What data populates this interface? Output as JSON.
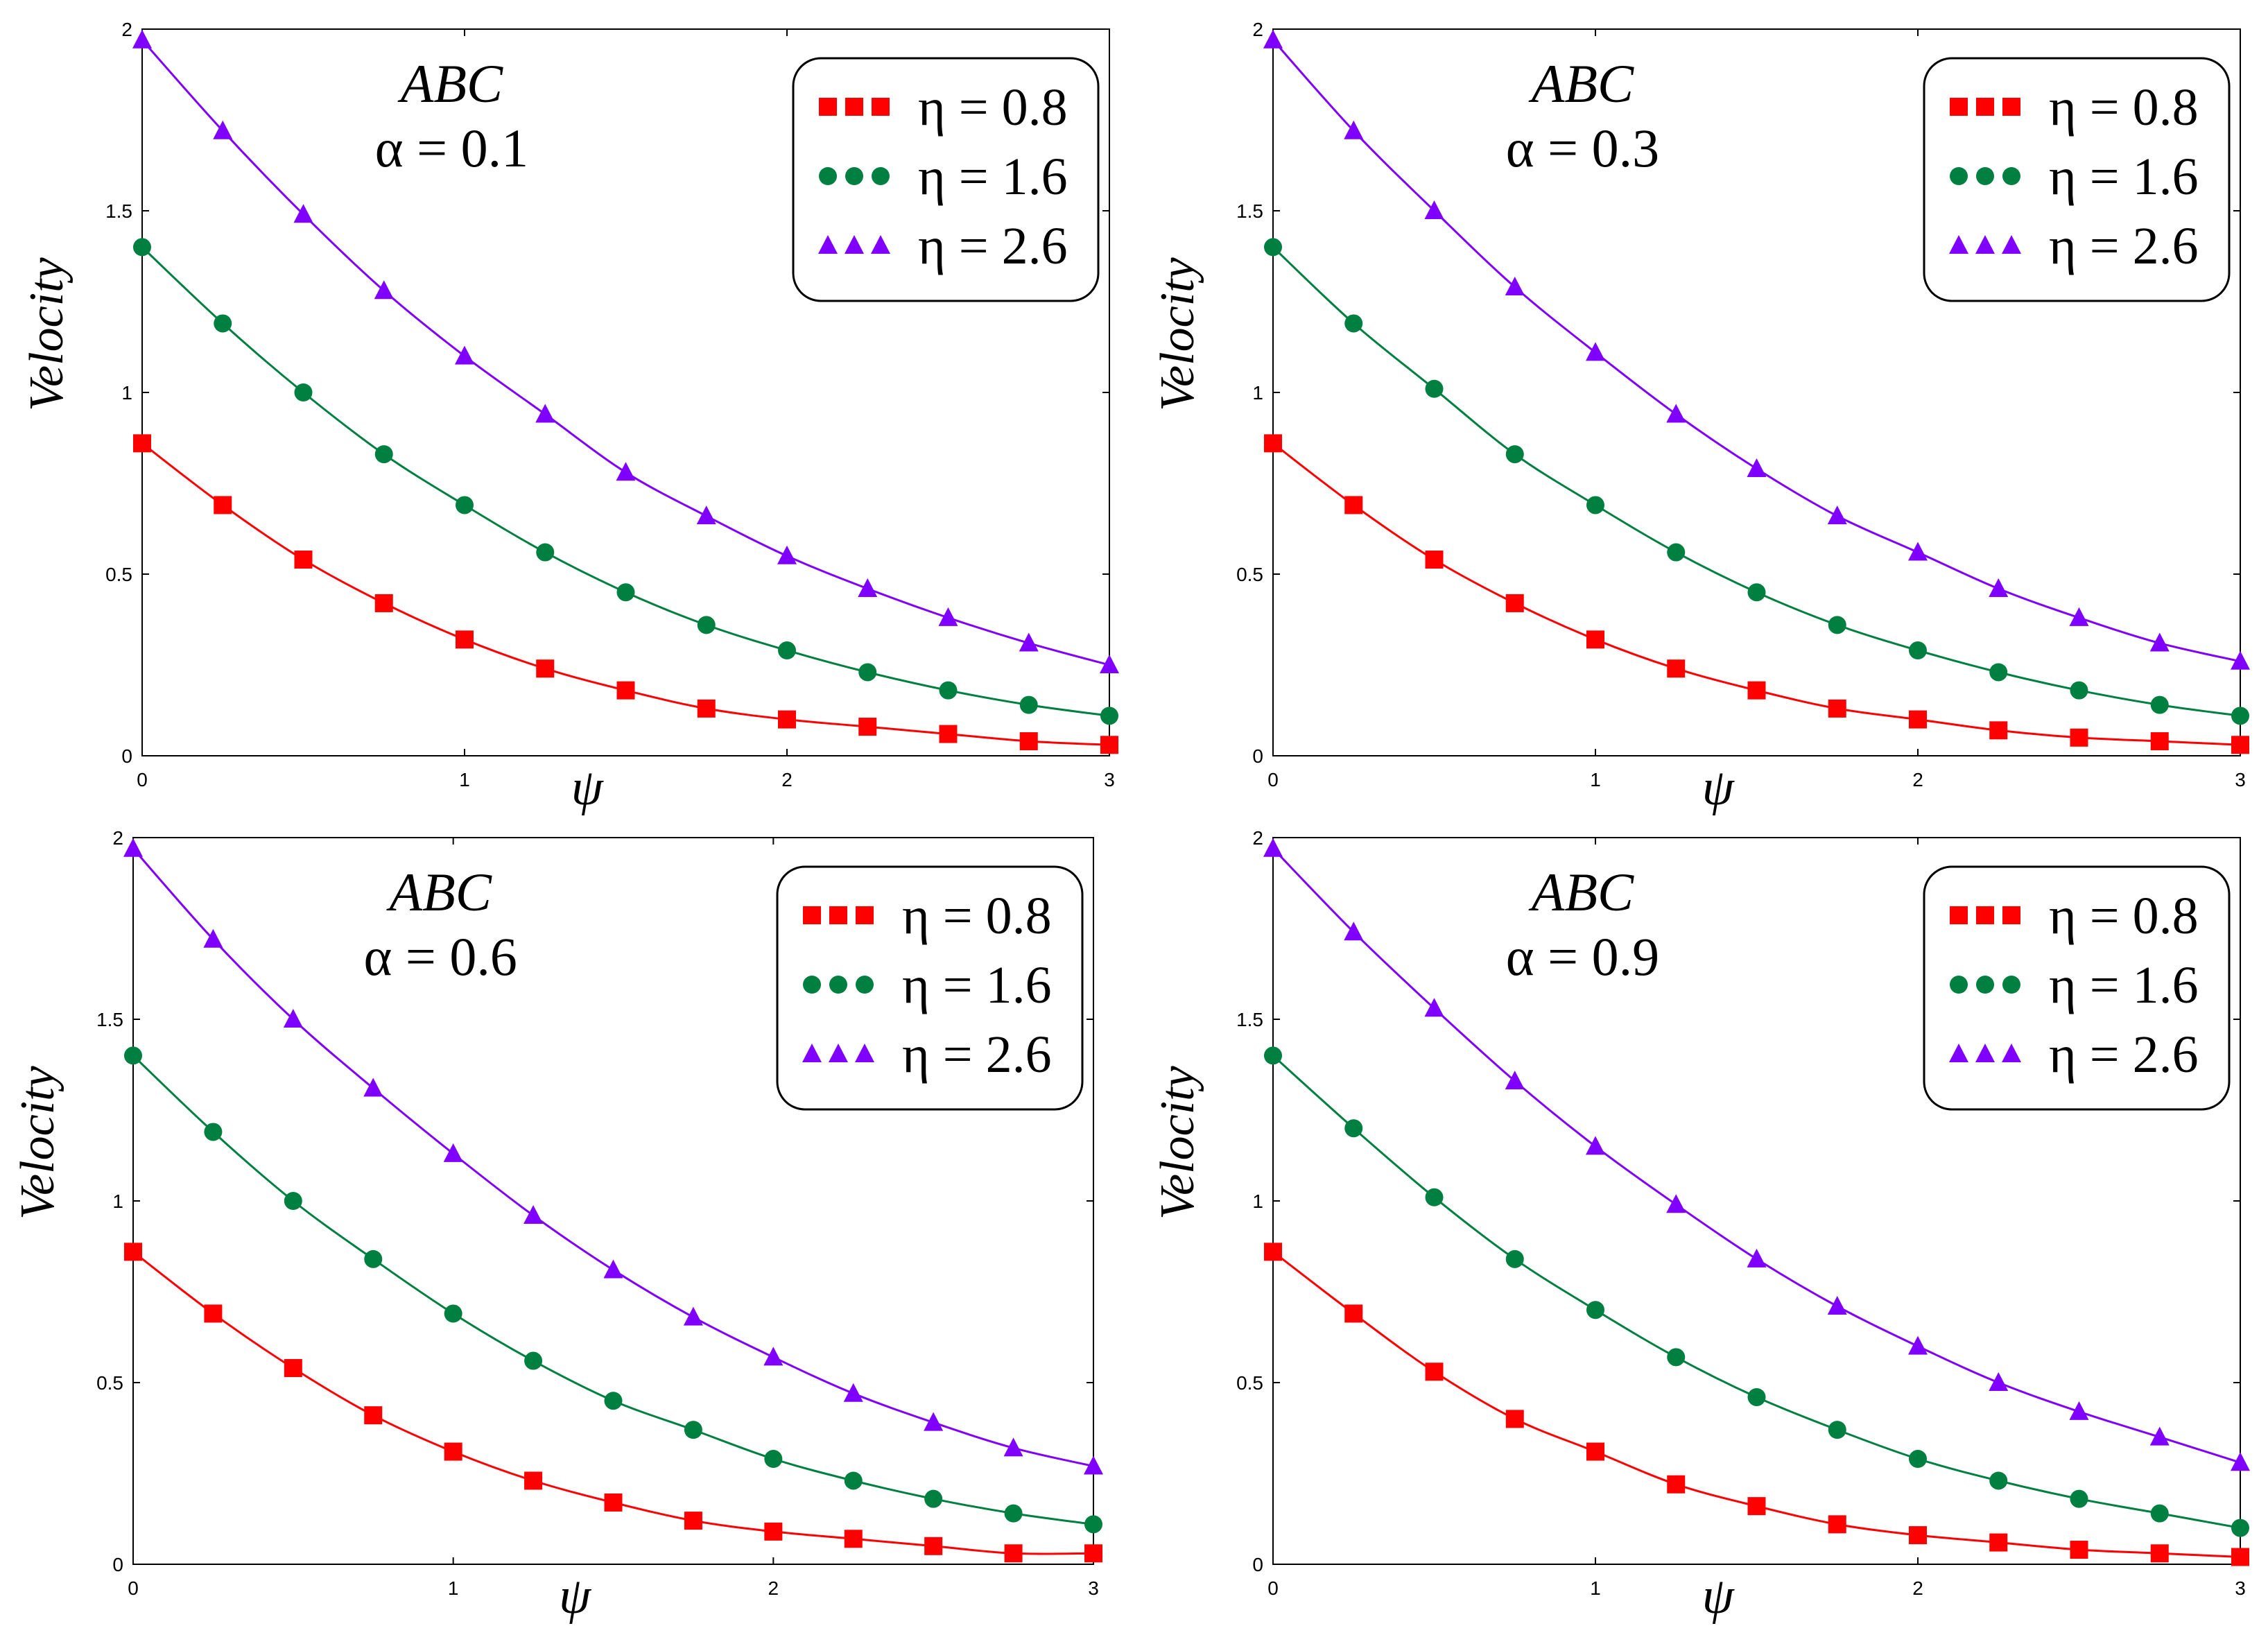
{
  "figure_title": "",
  "chart_data": [
    {
      "type": "line",
      "panel": "top-left",
      "annotation": {
        "line1": "ABC",
        "line2": "α = 0.1"
      },
      "xlabel": "ψ",
      "ylabel": "Velocity",
      "xlim": [
        0,
        3
      ],
      "ylim": [
        0,
        2
      ],
      "xticks": [
        "0",
        "1",
        "2",
        "3"
      ],
      "yticks": [
        "0",
        "0.5",
        "1",
        "1.5",
        "2"
      ],
      "legend_position": "top-right",
      "x": [
        0,
        0.25,
        0.5,
        0.75,
        1.0,
        1.25,
        1.5,
        1.75,
        2.0,
        2.25,
        2.5,
        2.75,
        3.0
      ],
      "series": [
        {
          "name": "η = 0.8",
          "color": "#ff0000",
          "marker": "square",
          "values": [
            0.86,
            0.69,
            0.54,
            0.42,
            0.32,
            0.24,
            0.18,
            0.13,
            0.1,
            0.08,
            0.06,
            0.04,
            0.03
          ]
        },
        {
          "name": "η = 1.6",
          "color": "#008040",
          "marker": "circle",
          "values": [
            1.4,
            1.19,
            1.0,
            0.83,
            0.69,
            0.56,
            0.45,
            0.36,
            0.29,
            0.23,
            0.18,
            0.14,
            0.11
          ]
        },
        {
          "name": "η = 2.6",
          "color": "#8000ff",
          "marker": "triangle",
          "values": [
            1.97,
            1.72,
            1.49,
            1.28,
            1.1,
            0.94,
            0.78,
            0.66,
            0.55,
            0.46,
            0.38,
            0.31,
            0.25
          ]
        }
      ]
    },
    {
      "type": "line",
      "panel": "top-right",
      "annotation": {
        "line1": "ABC",
        "line2": "α = 0.3"
      },
      "xlabel": "ψ",
      "ylabel": "Velocity",
      "xlim": [
        0,
        3
      ],
      "ylim": [
        0,
        2
      ],
      "xticks": [
        "0",
        "1",
        "2",
        "3"
      ],
      "yticks": [
        "0",
        "0.5",
        "1",
        "1.5",
        "2"
      ],
      "legend_position": "top-right",
      "x": [
        0,
        0.25,
        0.5,
        0.75,
        1.0,
        1.25,
        1.5,
        1.75,
        2.0,
        2.25,
        2.5,
        2.75,
        3.0
      ],
      "series": [
        {
          "name": "η = 0.8",
          "color": "#ff0000",
          "marker": "square",
          "values": [
            0.86,
            0.69,
            0.54,
            0.42,
            0.32,
            0.24,
            0.18,
            0.13,
            0.1,
            0.07,
            0.05,
            0.04,
            0.03
          ]
        },
        {
          "name": "η = 1.6",
          "color": "#008040",
          "marker": "circle",
          "values": [
            1.4,
            1.19,
            1.01,
            0.83,
            0.69,
            0.56,
            0.45,
            0.36,
            0.29,
            0.23,
            0.18,
            0.14,
            0.11
          ]
        },
        {
          "name": "η = 2.6",
          "color": "#8000ff",
          "marker": "triangle",
          "values": [
            1.97,
            1.72,
            1.5,
            1.29,
            1.11,
            0.94,
            0.79,
            0.66,
            0.56,
            0.46,
            0.38,
            0.31,
            0.26
          ]
        }
      ]
    },
    {
      "type": "line",
      "panel": "bottom-left",
      "annotation": {
        "line1": "ABC",
        "line2": "α = 0.6"
      },
      "xlabel": "ψ",
      "ylabel": "Velocity",
      "xlim": [
        0,
        3
      ],
      "ylim": [
        0,
        2
      ],
      "xticks": [
        "0",
        "1",
        "2",
        "3"
      ],
      "yticks": [
        "0",
        "0.5",
        "1",
        "1.5",
        "2"
      ],
      "legend_position": "top-right",
      "x": [
        0,
        0.25,
        0.5,
        0.75,
        1.0,
        1.25,
        1.5,
        1.75,
        2.0,
        2.25,
        2.5,
        2.75,
        3.0
      ],
      "series": [
        {
          "name": "η = 0.8",
          "color": "#ff0000",
          "marker": "square",
          "values": [
            0.86,
            0.69,
            0.54,
            0.41,
            0.31,
            0.23,
            0.17,
            0.12,
            0.09,
            0.07,
            0.05,
            0.03,
            0.03
          ]
        },
        {
          "name": "η = 1.6",
          "color": "#008040",
          "marker": "circle",
          "values": [
            1.4,
            1.19,
            1.0,
            0.84,
            0.69,
            0.56,
            0.45,
            0.37,
            0.29,
            0.23,
            0.18,
            0.14,
            0.11
          ]
        },
        {
          "name": "η = 2.6",
          "color": "#8000ff",
          "marker": "triangle",
          "values": [
            1.97,
            1.72,
            1.5,
            1.31,
            1.13,
            0.96,
            0.81,
            0.68,
            0.57,
            0.47,
            0.39,
            0.32,
            0.27
          ]
        }
      ]
    },
    {
      "type": "line",
      "panel": "bottom-right",
      "annotation": {
        "line1": "ABC",
        "line2": "α = 0.9"
      },
      "xlabel": "ψ",
      "ylabel": "Velocity",
      "xlim": [
        0,
        3
      ],
      "ylim": [
        0,
        2
      ],
      "xticks": [
        "0",
        "1",
        "2",
        "3"
      ],
      "yticks": [
        "0",
        "0.5",
        "1",
        "1.5",
        "2"
      ],
      "legend_position": "top-right",
      "x": [
        0,
        0.25,
        0.5,
        0.75,
        1.0,
        1.25,
        1.5,
        1.75,
        2.0,
        2.25,
        2.5,
        2.75,
        3.0
      ],
      "series": [
        {
          "name": "η = 0.8",
          "color": "#ff0000",
          "marker": "square",
          "values": [
            0.86,
            0.69,
            0.53,
            0.4,
            0.31,
            0.22,
            0.16,
            0.11,
            0.08,
            0.06,
            0.04,
            0.03,
            0.02
          ]
        },
        {
          "name": "η = 1.6",
          "color": "#008040",
          "marker": "circle",
          "values": [
            1.4,
            1.2,
            1.01,
            0.84,
            0.7,
            0.57,
            0.46,
            0.37,
            0.29,
            0.23,
            0.18,
            0.14,
            0.1
          ]
        },
        {
          "name": "η = 2.6",
          "color": "#8000ff",
          "marker": "triangle",
          "values": [
            1.97,
            1.74,
            1.53,
            1.33,
            1.15,
            0.99,
            0.84,
            0.71,
            0.6,
            0.5,
            0.42,
            0.35,
            0.28
          ]
        }
      ]
    }
  ]
}
